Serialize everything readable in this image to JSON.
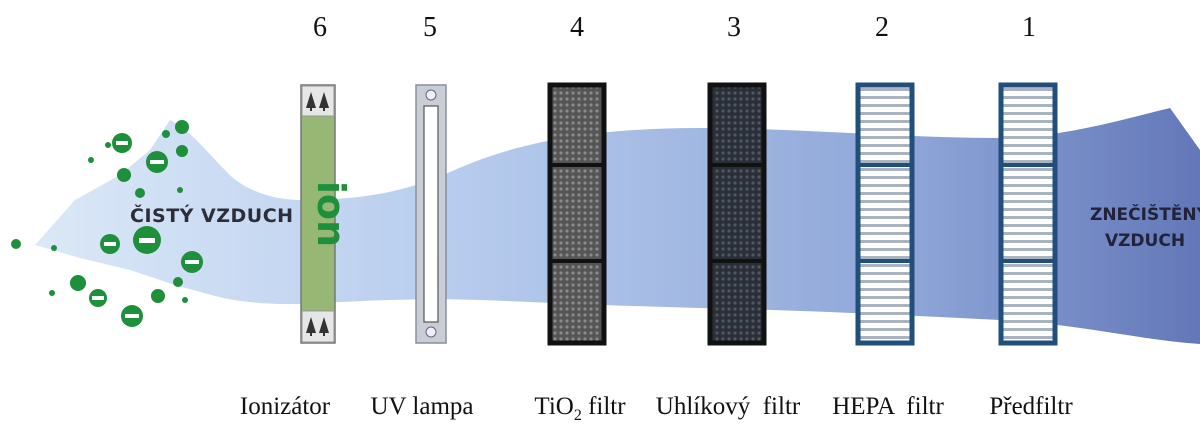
{
  "stages": [
    {
      "number": "6",
      "label": "Ionizátor"
    },
    {
      "number": "5",
      "label": "UV lampa"
    },
    {
      "number": "4",
      "label_prefix": "TiO",
      "label_sub": "2",
      "label_suffix": " filtr"
    },
    {
      "number": "3",
      "label": "Uhlíkový  filtr"
    },
    {
      "number": "2",
      "label": "HEPA  filtr"
    },
    {
      "number": "1",
      "label": "Předfiltr"
    }
  ],
  "air": {
    "clean_label": "ČISTÝ VZDUCH",
    "dirty_label_line1": "ZNEČIŠTĚNÝ",
    "dirty_label_line2": "VZDUCH"
  },
  "ionizer_text": "ion",
  "colors": {
    "air_light": "#cfe0f5",
    "air_dark": "#6f88c4",
    "ion_green": "#1e8f3a",
    "ionizer_panel": "#97b874",
    "hepa_frame": "#1f4f7a"
  },
  "icons": [
    "tree-icon",
    "bulb-icon",
    "minus-ion-icon"
  ]
}
